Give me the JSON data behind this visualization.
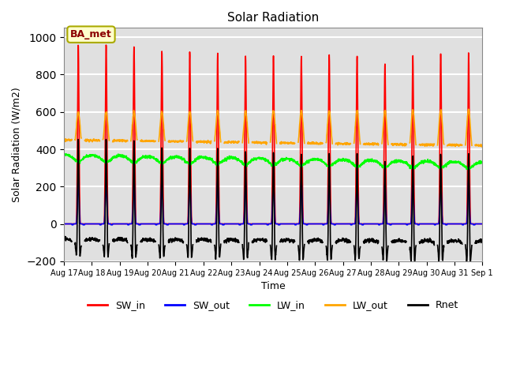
{
  "title": "Solar Radiation",
  "xlabel": "Time",
  "ylabel": "Solar Radiation (W/m2)",
  "ylim": [
    -200,
    1050
  ],
  "yticks": [
    -200,
    0,
    200,
    400,
    600,
    800,
    1000
  ],
  "background_color": "#e0e0e0",
  "grid_color": "white",
  "series": {
    "SW_in": {
      "color": "red",
      "lw": 1.2
    },
    "SW_out": {
      "color": "blue",
      "lw": 1.2
    },
    "LW_in": {
      "color": "lime",
      "lw": 1.2
    },
    "LW_out": {
      "color": "orange",
      "lw": 1.2
    },
    "Rnet": {
      "color": "black",
      "lw": 1.2
    }
  },
  "legend_label": "BA_met",
  "legend_label_color": "#8B0000",
  "legend_label_bg": "#FFFFCC",
  "n_days": 15,
  "pts_per_day": 144,
  "day_labels": [
    "Aug 17",
    "Aug 18",
    "Aug 19",
    "Aug 20",
    "Aug 21",
    "Aug 22",
    "Aug 23",
    "Aug 24",
    "Aug 25",
    "Aug 26",
    "Aug 27",
    "Aug 28",
    "Aug 29",
    "Aug 30",
    "Aug 31",
    "Sep 1"
  ]
}
